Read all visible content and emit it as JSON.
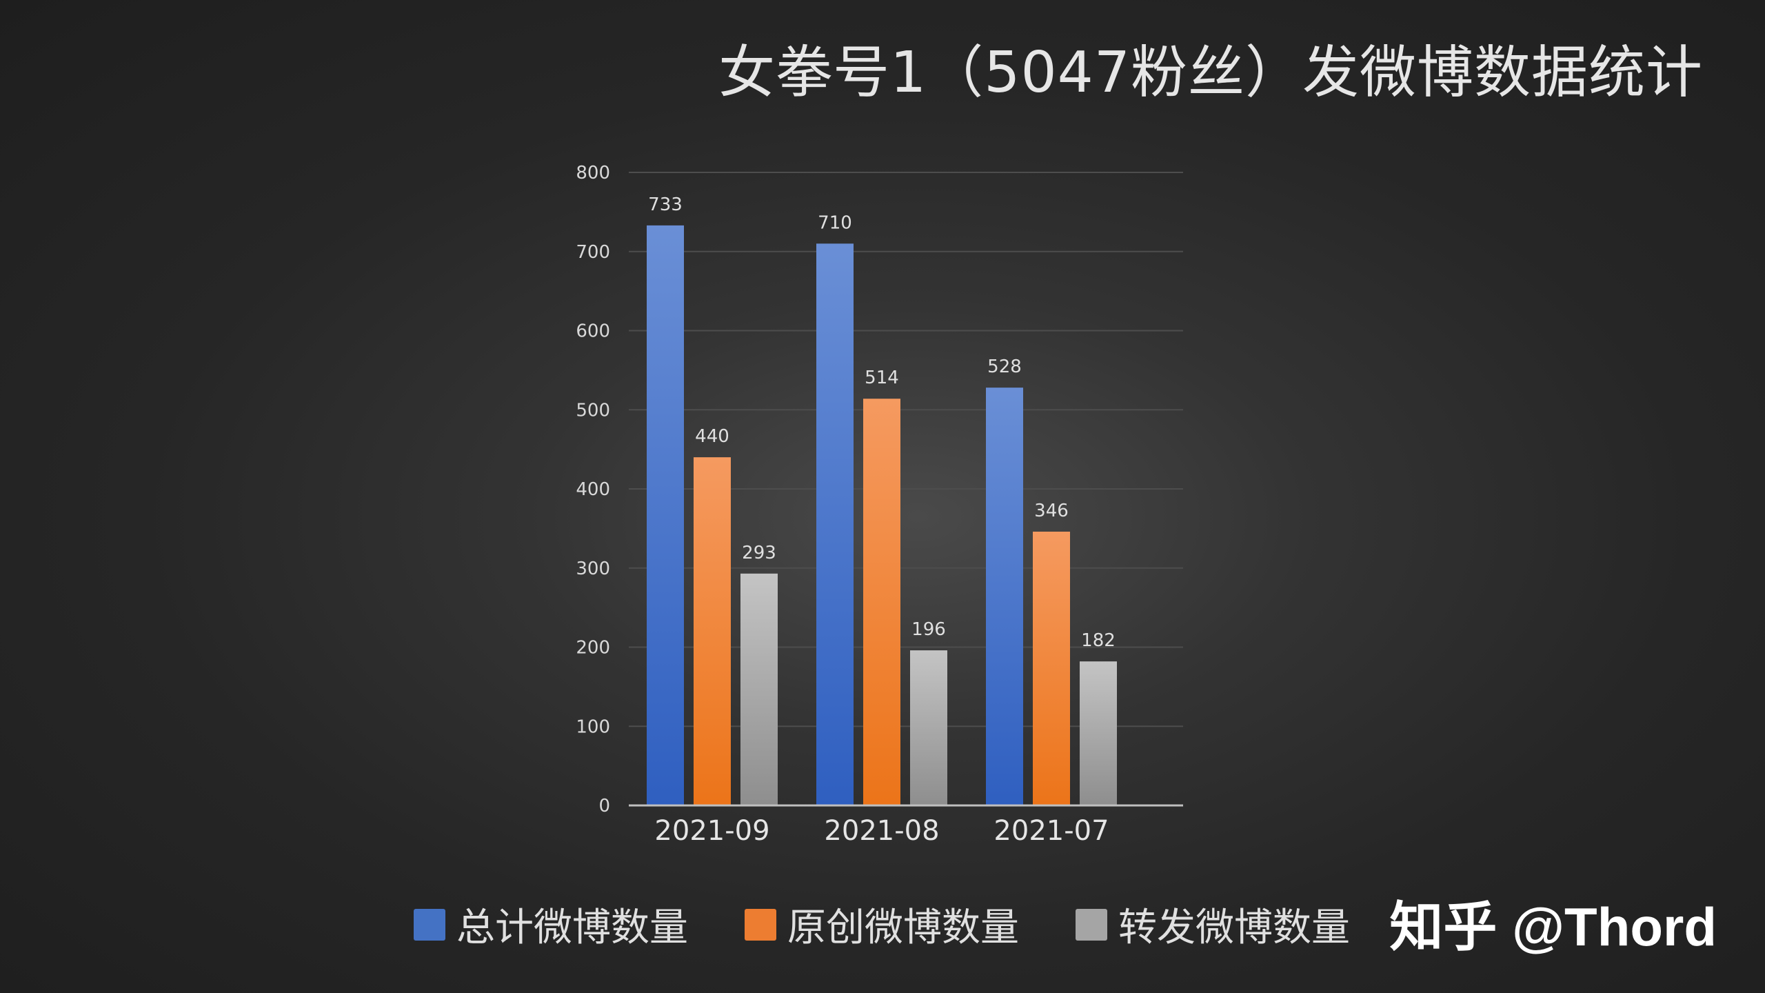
{
  "title": "女拳号1（5047粉丝）发微博数据统计",
  "watermark": "知乎 @Thord",
  "chart_data": {
    "type": "bar",
    "title": "女拳号1（5047粉丝）发微博数据统计",
    "xlabel": "",
    "ylabel": "",
    "categories": [
      "2021-09",
      "2021-08",
      "2021-07"
    ],
    "ylim": [
      0,
      800
    ],
    "yticks": [
      "0",
      "100",
      "200",
      "300",
      "400",
      "500",
      "600",
      "700",
      "800"
    ],
    "grid": true,
    "legend_position": "bottom",
    "series": [
      {
        "name": "总计微博数量",
        "values": [
          733,
          710,
          528
        ],
        "color": "#4472C4"
      },
      {
        "name": "原创微博数量",
        "values": [
          440,
          514,
          346
        ],
        "color": "#ED7D31"
      },
      {
        "name": "转发微博数量",
        "values": [
          293,
          196,
          182
        ],
        "color": "#A5A5A5"
      }
    ]
  }
}
